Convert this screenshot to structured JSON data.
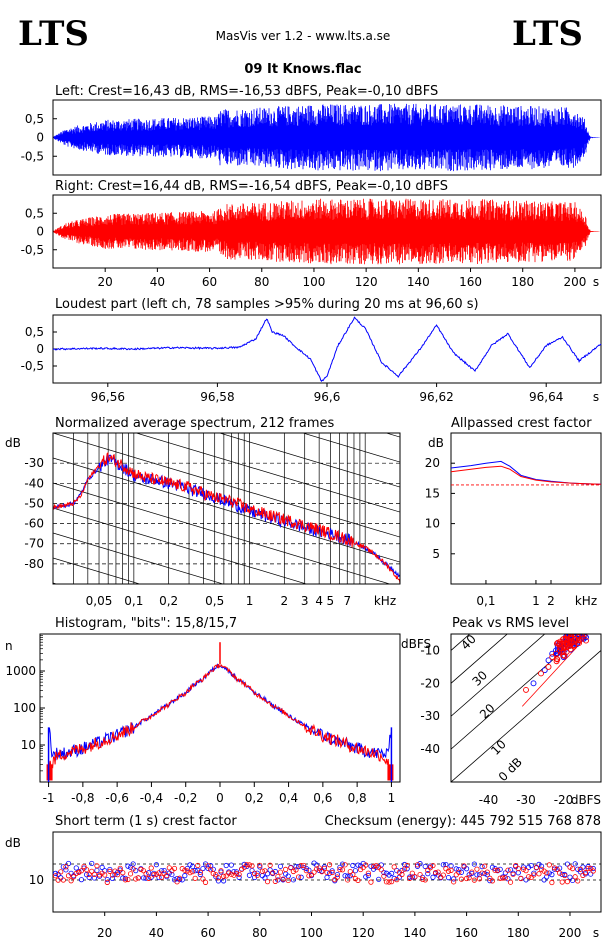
{
  "header": {
    "logo_left": "LTS",
    "logo_right": "LTS",
    "app_title": "MasVis ver 1.2 - www.lts.a.se",
    "file_title": "09 It Knows.flac"
  },
  "colors": {
    "left": "#0000ff",
    "right": "#ff0000"
  },
  "chart_data": [
    {
      "id": "waveform-left",
      "type": "area",
      "title": "Left: Crest=16,43 dB, RMS=-16,53 dBFS, Peak=-0,10 dBFS",
      "xlim": [
        0,
        210
      ],
      "ylim": [
        -1,
        1
      ],
      "y_ticks": [
        "0,5",
        "0",
        "-0,5"
      ],
      "envelope": {
        "x": [
          0,
          5,
          10,
          20,
          40,
          60,
          63,
          64,
          80,
          100,
          120,
          140,
          160,
          180,
          200,
          204,
          205,
          206,
          210
        ],
        "amp": [
          0.02,
          0.25,
          0.35,
          0.5,
          0.55,
          0.6,
          0.6,
          0.8,
          0.85,
          0.95,
          0.95,
          0.95,
          0.95,
          0.9,
          0.85,
          0.5,
          0.2,
          0.02,
          0.0
        ]
      },
      "color": "#0000ff"
    },
    {
      "id": "waveform-right",
      "type": "area",
      "title": "Right: Crest=16,44 dB, RMS=-16,54 dBFS, Peak=-0,10 dBFS",
      "xlim": [
        0,
        210
      ],
      "ylim": [
        -1,
        1
      ],
      "y_ticks": [
        "0,5",
        "0",
        "-0,5"
      ],
      "x_ticks": [
        "20",
        "40",
        "60",
        "80",
        "100",
        "120",
        "140",
        "160",
        "180",
        "200",
        "s"
      ],
      "envelope": {
        "x": [
          0,
          5,
          10,
          20,
          40,
          60,
          63,
          64,
          80,
          100,
          120,
          140,
          160,
          180,
          200,
          204,
          205,
          206,
          210
        ],
        "amp": [
          0.02,
          0.25,
          0.35,
          0.5,
          0.55,
          0.6,
          0.6,
          0.8,
          0.85,
          0.95,
          0.95,
          0.95,
          0.95,
          0.9,
          0.85,
          0.5,
          0.2,
          0.02,
          0.0
        ]
      },
      "color": "#ff0000"
    },
    {
      "id": "loudest-part",
      "type": "line",
      "title": "Loudest part (left  ch, 78 samples >95% during 20 ms at 96,60 s)",
      "xlim": [
        96.55,
        96.65
      ],
      "ylim": [
        -1,
        1
      ],
      "y_ticks": [
        "0,5",
        "0",
        "-0,5"
      ],
      "x_ticks": [
        "96,56",
        "96,58",
        "96,6",
        "96,62",
        "96,64",
        "s"
      ],
      "x": [
        96.551,
        96.558,
        96.565,
        96.572,
        96.579,
        96.584,
        96.587,
        96.589,
        96.59,
        96.592,
        96.594,
        96.597,
        96.599,
        96.6,
        96.602,
        96.605,
        96.607,
        96.61,
        96.613,
        96.617,
        96.62,
        96.623,
        96.627,
        96.63,
        96.633,
        96.637,
        96.64,
        96.643,
        96.646,
        96.65
      ],
      "y": [
        0.0,
        0.02,
        0.0,
        0.04,
        0.02,
        0.05,
        0.3,
        0.9,
        0.5,
        0.4,
        0.1,
        -0.3,
        -0.95,
        -0.8,
        0.1,
        0.92,
        0.6,
        -0.4,
        -0.8,
        0.0,
        0.7,
        -0.1,
        -0.65,
        0.1,
        0.45,
        -0.55,
        0.1,
        0.35,
        -0.35,
        0.15
      ],
      "color": "#0000ff"
    },
    {
      "id": "spectrum",
      "type": "line",
      "title": "Normalized average spectrum, 212 frames",
      "ylabel": "dB",
      "xscale": "log",
      "xlim": [
        0.02,
        20
      ],
      "ylim": [
        -90,
        -15
      ],
      "y_ticks": [
        "-30",
        "-40",
        "-50",
        "-60",
        "-70",
        "-80"
      ],
      "x_ticks": [
        "0,05",
        "0,1",
        "0,2",
        "0,5",
        "1",
        "2",
        "3",
        "4",
        "5",
        "7",
        "kHz"
      ],
      "series": [
        {
          "name": "left",
          "x": [
            0.02,
            0.03,
            0.035,
            0.04,
            0.05,
            0.06,
            0.08,
            0.1,
            0.12,
            0.15,
            0.2,
            0.3,
            0.4,
            0.5,
            0.7,
            1,
            1.5,
            2,
            3,
            4,
            5,
            7,
            10,
            15,
            20
          ],
          "y": [
            -52,
            -50,
            -45,
            -38,
            -32,
            -28,
            -32,
            -36,
            -38,
            -38,
            -40,
            -43,
            -45,
            -47,
            -50,
            -54,
            -57,
            -59,
            -62,
            -64,
            -65,
            -68,
            -72,
            -80,
            -86
          ],
          "color": "#0000ff"
        },
        {
          "name": "right",
          "x": [
            0.02,
            0.03,
            0.035,
            0.04,
            0.05,
            0.06,
            0.08,
            0.1,
            0.12,
            0.15,
            0.2,
            0.3,
            0.4,
            0.5,
            0.7,
            1,
            1.5,
            2,
            3,
            4,
            5,
            7,
            10,
            15,
            20
          ],
          "y": [
            -52,
            -50,
            -46,
            -38,
            -31,
            -27,
            -31,
            -35,
            -37,
            -38,
            -40,
            -42,
            -45,
            -47,
            -49,
            -53,
            -56,
            -58,
            -61,
            -63,
            -65,
            -68,
            -72,
            -80,
            -89
          ],
          "color": "#ff0000"
        }
      ]
    },
    {
      "id": "allpassed-crest",
      "type": "line",
      "title": "Allpassed crest factor",
      "ylabel": "dB",
      "xscale": "log",
      "xlim": [
        0.02,
        20
      ],
      "ylim": [
        0,
        25
      ],
      "y_ticks": [
        "20",
        "15",
        "10",
        "5"
      ],
      "x_ticks": [
        "0,1",
        "1",
        "2",
        "kHz"
      ],
      "reference_db": 16.4,
      "series": [
        {
          "name": "left",
          "x": [
            0.02,
            0.05,
            0.1,
            0.2,
            0.3,
            0.5,
            1,
            2,
            5,
            10,
            20
          ],
          "y": [
            19.2,
            19.6,
            20.0,
            20.3,
            19.5,
            18.0,
            17.3,
            17.0,
            16.7,
            16.6,
            16.5
          ],
          "color": "#0000ff"
        },
        {
          "name": "right",
          "x": [
            0.02,
            0.05,
            0.1,
            0.2,
            0.3,
            0.5,
            1,
            2,
            5,
            10,
            20
          ],
          "y": [
            18.6,
            19.0,
            19.3,
            19.5,
            19.0,
            17.8,
            17.2,
            16.9,
            16.7,
            16.6,
            16.5
          ],
          "color": "#ff0000"
        }
      ]
    },
    {
      "id": "histogram",
      "type": "line",
      "title": "Histogram, \"bits\": 15,8/15,7",
      "ylabel": "n",
      "yscale": "log",
      "xlim": [
        -1.05,
        1.05
      ],
      "ylim": [
        1,
        10000
      ],
      "y_ticks": [
        "1000",
        "100",
        "10"
      ],
      "x_ticks": [
        "-1",
        "-0,8",
        "-0,6",
        "-0,4",
        "-0,2",
        "0",
        "0,2",
        "0,4",
        "0,6",
        "0,8",
        "1"
      ],
      "series": [
        {
          "name": "left",
          "x": [
            -1.0,
            -0.98,
            -0.95,
            -0.9,
            -0.8,
            -0.7,
            -0.6,
            -0.5,
            -0.4,
            -0.3,
            -0.2,
            -0.1,
            -0.05,
            0,
            0.05,
            0.1,
            0.2,
            0.3,
            0.4,
            0.5,
            0.6,
            0.7,
            0.8,
            0.9,
            0.95,
            0.98,
            1.0
          ],
          "y": [
            30,
            5,
            6,
            6,
            8,
            12,
            18,
            30,
            60,
            120,
            250,
            600,
            1000,
            1500,
            1000,
            600,
            250,
            120,
            60,
            30,
            18,
            12,
            8,
            6,
            6,
            5,
            30
          ],
          "color": "#0000ff"
        },
        {
          "name": "right",
          "x": [
            -1.0,
            -0.98,
            -0.95,
            -0.9,
            -0.8,
            -0.7,
            -0.6,
            -0.5,
            -0.4,
            -0.3,
            -0.2,
            -0.1,
            -0.05,
            0,
            0.05,
            0.1,
            0.2,
            0.3,
            0.4,
            0.5,
            0.6,
            0.7,
            0.8,
            0.9,
            0.95,
            0.98,
            1.0
          ],
          "y": [
            3,
            3,
            5,
            6,
            8,
            12,
            18,
            30,
            60,
            120,
            250,
            600,
            1000,
            1500,
            1000,
            600,
            250,
            120,
            60,
            30,
            18,
            12,
            8,
            6,
            5,
            3,
            3
          ],
          "color": "#ff0000"
        }
      ]
    },
    {
      "id": "peak-vs-rms",
      "type": "scatter",
      "title": "Peak vs RMS level",
      "ylabel": "dBFS",
      "xlabel": "dBFS",
      "xlim": [
        -50,
        -10
      ],
      "ylim": [
        -50,
        -5
      ],
      "y_ticks": [
        "-10",
        "-20",
        "-30",
        "-40"
      ],
      "x_ticks": [
        "-40",
        "-30",
        "-20"
      ],
      "crest_lines": [
        "40",
        "30",
        "20",
        "10",
        "0 dB"
      ],
      "series": [
        {
          "name": "left",
          "x": [
            -19,
            -18,
            -17,
            -16,
            -15,
            -20,
            -21,
            -22,
            -23,
            -18,
            -16,
            -15,
            -14,
            -19,
            -25,
            -28,
            -20,
            -17,
            -24
          ],
          "y": [
            -5,
            -6,
            -4,
            -5,
            -6,
            -8,
            -9,
            -10,
            -11,
            -7,
            -6,
            -5,
            -6,
            -7,
            -16,
            -20,
            -12,
            -6,
            -13
          ],
          "color": "#0000ff"
        },
        {
          "name": "right",
          "x": [
            -19,
            -18,
            -17,
            -16,
            -15,
            -20,
            -21,
            -22,
            -23,
            -18,
            -16,
            -15,
            -14,
            -19,
            -26,
            -30,
            -24,
            -17,
            -21
          ],
          "y": [
            -4,
            -5,
            -5,
            -6,
            -5,
            -9,
            -8,
            -11,
            -12,
            -6,
            -7,
            -4,
            -7,
            -8,
            -17,
            -22,
            -15,
            -5,
            -10
          ],
          "color": "#ff0000"
        }
      ]
    },
    {
      "id": "short-term-crest",
      "type": "scatter",
      "title": "Short term (1 s) crest factor",
      "checksum": "Checksum (energy):   445 792 515 768 878",
      "ylabel": "dB",
      "xlim": [
        0,
        212
      ],
      "ylim": [
        0,
        25
      ],
      "y_ticks": [
        "10"
      ],
      "x_ticks": [
        "20",
        "40",
        "60",
        "80",
        "100",
        "120",
        "140",
        "160",
        "180",
        "200",
        "s"
      ],
      "dashed_db": [
        10,
        15
      ],
      "series": [
        {
          "name": "left",
          "y_center": 12.5,
          "spread": 2.8,
          "color": "#0000ff"
        },
        {
          "name": "right",
          "y_center": 12.0,
          "spread": 2.8,
          "color": "#ff0000"
        }
      ]
    }
  ]
}
